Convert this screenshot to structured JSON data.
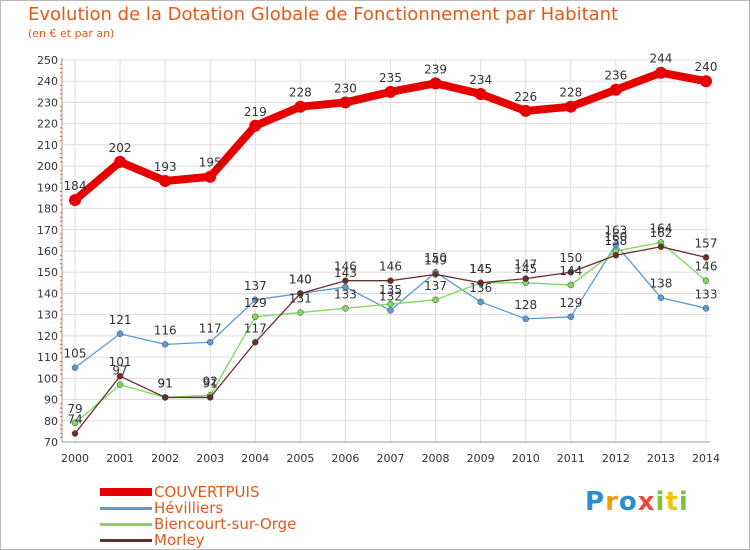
{
  "chart_data": {
    "type": "line",
    "title": "Evolution de la Dotation Globale de Fonctionnement par Habitant",
    "subtitle": "(en € et par an)",
    "xlabel": "",
    "ylabel": "",
    "ylim": [
      70,
      250
    ],
    "ytick_step": 10,
    "yticks": [
      "70",
      "80",
      "90",
      "100",
      "110",
      "120",
      "130",
      "140",
      "150",
      "160",
      "170",
      "180",
      "190",
      "200",
      "210",
      "220",
      "230",
      "240",
      "250"
    ],
    "x": [
      "2000",
      "2001",
      "2002",
      "2003",
      "2004",
      "2005",
      "2006",
      "2007",
      "2008",
      "2009",
      "2010",
      "2011",
      "2012",
      "2013",
      "2014"
    ],
    "grid": true,
    "legend_position": "bottom-left",
    "series": [
      {
        "name": "COUVERTPUIS",
        "color": "#e60000",
        "values": [
          184,
          202,
          193,
          195,
          219,
          228,
          230,
          235,
          239,
          234,
          226,
          228,
          236,
          244,
          240
        ],
        "labels": [
          "184",
          "202",
          "193",
          "195",
          "219",
          "228",
          "230",
          "235",
          "239",
          "234",
          "226",
          "228",
          "236",
          "244",
          "240"
        ]
      },
      {
        "name": "Hévilliers",
        "color": "#5b9bd5",
        "values": [
          105,
          121,
          116,
          117,
          137,
          140,
          143,
          132,
          150,
          136,
          128,
          129,
          163,
          138,
          133
        ],
        "labels": [
          "105",
          "121",
          "116",
          "117",
          "137",
          "140",
          "143",
          "132",
          "150",
          "136",
          "128",
          "129",
          "163",
          "138",
          "133"
        ]
      },
      {
        "name": "Biencourt-sur-Orge",
        "color": "#7ed957",
        "values": [
          79,
          97,
          91,
          92,
          129,
          131,
          133,
          135,
          137,
          145,
          145,
          144,
          160,
          164,
          146
        ],
        "labels": [
          "79",
          "97",
          "91",
          "92",
          "129",
          "131",
          "133",
          "135",
          "137",
          "145",
          "145",
          "144",
          "160",
          "164",
          "146"
        ]
      },
      {
        "name": "Morley",
        "color": "#6b2c2c",
        "values": [
          74,
          101,
          91,
          91,
          117,
          140,
          146,
          146,
          149,
          145,
          147,
          150,
          158,
          162,
          157
        ],
        "labels": [
          "74",
          "101",
          "91",
          "91",
          "117",
          "140",
          "146",
          "146",
          "149",
          "145",
          "147",
          "150",
          "158",
          "162",
          "157"
        ]
      }
    ]
  },
  "brand": {
    "logo_letters": [
      {
        "ch": "P",
        "color": "#2e8bcf"
      },
      {
        "ch": "r",
        "color": "#f39c12"
      },
      {
        "ch": "o",
        "color": "#2e8bcf"
      },
      {
        "ch": "x",
        "color": "#e74c3c"
      },
      {
        "ch": "i",
        "color": "#7ec242"
      },
      {
        "ch": "t",
        "color": "#f1c40f"
      },
      {
        "ch": "i",
        "color": "#7ec242"
      }
    ]
  }
}
